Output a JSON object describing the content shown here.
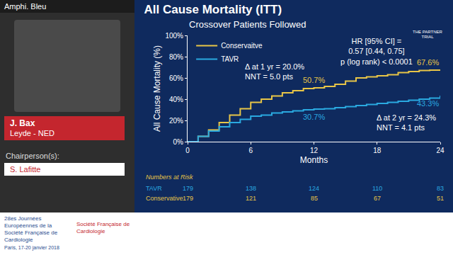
{
  "chart_data": {
    "type": "line",
    "title": "All Cause Mortality (ITT)",
    "subtitle": "Crossover Patients Followed",
    "x_label": "Months",
    "y_label": "All Cause Mortality (%)",
    "x": [
      0,
      1,
      2,
      3,
      4,
      5,
      6,
      7,
      8,
      9,
      10,
      11,
      12,
      13,
      14,
      15,
      16,
      17,
      18,
      19,
      20,
      21,
      22,
      23,
      24
    ],
    "series": [
      {
        "name": "Conservaitve",
        "color": "#e8c547",
        "values": [
          0,
          5,
          11,
          18,
          25,
          31,
          37,
          40,
          43,
          46,
          48,
          50,
          50.7,
          52,
          54,
          57,
          60,
          61,
          62,
          63,
          65,
          66,
          67,
          67.4,
          67.6
        ]
      },
      {
        "name": "TAVR",
        "color": "#2aa9e0",
        "values": [
          0,
          5,
          10,
          14,
          18,
          21,
          24,
          25,
          27,
          28,
          29,
          30,
          30.7,
          31,
          32,
          33,
          34,
          35,
          36,
          37,
          38,
          39,
          40,
          41,
          43.3
        ]
      }
    ],
    "xlim": [
      0,
      24
    ],
    "xticks": [
      0,
      6,
      12,
      18,
      24
    ],
    "ylim": [
      0,
      100
    ],
    "yticks": [
      {
        "value": 0,
        "label": "0%"
      },
      {
        "value": 20,
        "label": "20%"
      },
      {
        "value": 40,
        "label": "40%"
      },
      {
        "value": 60,
        "label": "60%"
      },
      {
        "value": 80,
        "label": "80%"
      },
      {
        "value": 100,
        "label": "100%"
      }
    ],
    "grid": false,
    "legend": "top left",
    "annotations": [
      [
        "HR [95% CI] =",
        "0.57 [0.44, 0.75]",
        "p (log rank) < 0.0001"
      ],
      [
        "Δ at 1 yr = 20.0%",
        "NNT = 5.0 pts"
      ],
      [
        "Δ at 2 yr = 24.3%",
        "NNT = 4.1 pts"
      ]
    ],
    "point_labels": [
      {
        "series": "Conservaitve",
        "x": 12,
        "y": 50.7,
        "label": "50.7%"
      },
      {
        "series": "TAVR",
        "x": 12,
        "y": 30.7,
        "label": "30.7%"
      },
      {
        "series": "Conservaitve",
        "x": 24,
        "y": 67.6,
        "label": "67.6%"
      },
      {
        "series": "TAVR",
        "x": 24,
        "y": 43.3,
        "label": "43.3%"
      }
    ],
    "numbers_at_risk": {
      "title": "Numbers at Risk",
      "x": [
        0,
        6,
        12,
        18,
        24
      ],
      "rows": [
        {
          "name": "TAVR",
          "color": "#2aa9e0",
          "values": [
            179,
            138,
            124,
            110,
            83
          ]
        },
        {
          "name": "Conservative",
          "color": "#e8c547",
          "values": [
            179,
            121,
            85,
            67,
            51
          ]
        }
      ]
    }
  },
  "slide_frame": {
    "room": "Amphi. Bleu",
    "speaker": "J. Bax",
    "affiliation": "Leyde - NED",
    "chair_heading": "Chairperson(s):",
    "chair": "S. Lafitte",
    "event": "28es Journées Européennes de la Société Française de Cardiologie",
    "event_place": "Paris, 17-20 janvier 2018",
    "society": "Société Française de Cardiologie",
    "logo": "THE PARTNER TRIAL"
  }
}
